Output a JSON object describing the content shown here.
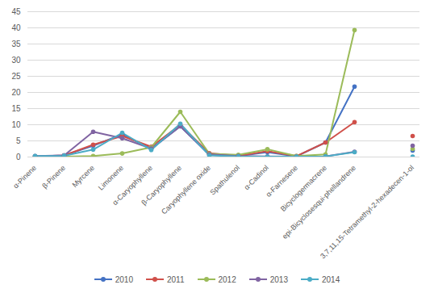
{
  "chart_data": {
    "type": "line",
    "categories": [
      "α-Pinene",
      "β-Pinene",
      "Myrcene",
      "Limonene",
      "α-Caryophyllene",
      "β-Caryophyllene",
      "Caryophyllene oxide",
      "Spathulenol",
      "α-Cadinol",
      "α-Farnesene",
      "Bicyclogermacrene",
      "epi-Bicyclosesqui-phellandrene",
      null,
      "3,7,11,15-Tetramethyl-2-hexadecen-1-ol"
    ],
    "series": [
      {
        "name": "2010",
        "color": "#4472c4",
        "values": [
          0.2,
          0.5,
          3.5,
          7,
          2.5,
          9.5,
          0.7,
          0.3,
          1.5,
          0.2,
          4.5,
          21.8,
          null,
          2
        ]
      },
      {
        "name": "2011",
        "color": "#d0504a",
        "values": [
          0.2,
          0.5,
          3.8,
          6.5,
          3.2,
          10,
          1.2,
          0.4,
          1.8,
          0.3,
          4.5,
          10.8,
          null,
          6.5
        ]
      },
      {
        "name": "2012",
        "color": "#9bbb59",
        "values": [
          0.1,
          0.1,
          0.3,
          1.1,
          3,
          14,
          1,
          0.7,
          2.4,
          0.3,
          0.8,
          39.3,
          null,
          2.5
        ]
      },
      {
        "name": "2013",
        "color": "#8064a2",
        "values": [
          0.3,
          0.5,
          7.8,
          5.8,
          2.6,
          9.5,
          0.8,
          0.3,
          0.2,
          0.1,
          0.2,
          1.6,
          null,
          3.5
        ]
      },
      {
        "name": "2014",
        "color": "#4bacc6",
        "values": [
          0.3,
          0.4,
          2.3,
          7.5,
          2.2,
          10.3,
          0.5,
          0.2,
          0.1,
          0.1,
          0.2,
          1.5,
          null,
          0.1
        ]
      }
    ],
    "ylim": [
      0,
      45
    ],
    "yticks": [
      0,
      5,
      10,
      15,
      20,
      25,
      30,
      35,
      40,
      45
    ],
    "grid": true,
    "legend": "bottom",
    "marker": "circle"
  }
}
